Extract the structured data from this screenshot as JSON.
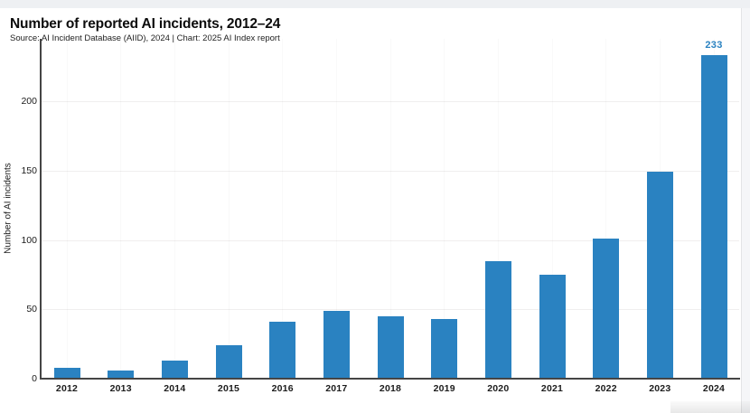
{
  "window": {
    "top_strip_color": "#eef0f3",
    "panel_background": "#ffffff"
  },
  "header": {
    "title": "Number of reported AI incidents, 2012–24",
    "subtitle": "Source: AI Incident Database (AIID), 2024 | Chart: 2025 AI Index report"
  },
  "chart_data": {
    "type": "bar",
    "title": "Number of reported AI incidents, 2012–24",
    "categories": [
      "2012",
      "2013",
      "2014",
      "2015",
      "2016",
      "2017",
      "2018",
      "2019",
      "2020",
      "2021",
      "2022",
      "2023",
      "2024"
    ],
    "values": [
      8,
      6,
      13,
      24,
      41,
      49,
      45,
      43,
      85,
      75,
      101,
      149,
      233
    ],
    "xlabel": "",
    "ylabel": "Number of AI incidents",
    "ylim": [
      0,
      245
    ],
    "yticks": [
      0,
      50,
      100,
      150,
      200
    ],
    "grid": "very faint horizontal and vertical gridlines",
    "legend": "none",
    "bar_color": "#2a82c1",
    "axis_color": "#454545",
    "annotations": [
      {
        "category": "2024",
        "text": "233",
        "color": "#2a82c1"
      }
    ]
  }
}
